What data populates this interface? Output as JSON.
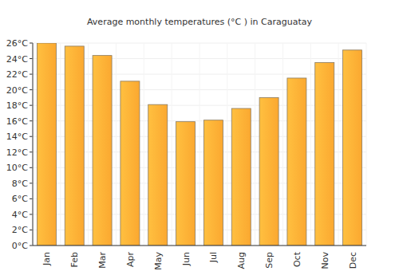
{
  "chart_data": {
    "type": "bar",
    "title": "Average monthly temperatures (°C ) in Caraguatay",
    "categories": [
      "Jan",
      "Feb",
      "Mar",
      "Apr",
      "May",
      "Jun",
      "Jul",
      "Aug",
      "Sep",
      "Oct",
      "Nov",
      "Dec"
    ],
    "values": [
      26.0,
      25.6,
      24.4,
      21.1,
      18.1,
      15.9,
      16.1,
      17.6,
      19.0,
      21.5,
      23.5,
      25.1
    ],
    "color": "#fba830",
    "ylim": [
      0,
      26
    ],
    "yticks": [
      {
        "value": 0,
        "label": "0°C"
      },
      {
        "value": 2,
        "label": "2°C"
      },
      {
        "value": 4,
        "label": "4°C"
      },
      {
        "value": 6,
        "label": "6°C"
      },
      {
        "value": 8,
        "label": "8°C"
      },
      {
        "value": 10,
        "label": "10°C"
      },
      {
        "value": 12,
        "label": "12°C"
      },
      {
        "value": 14,
        "label": "14°C"
      },
      {
        "value": 16,
        "label": "16°C"
      },
      {
        "value": 18,
        "label": "18°C"
      },
      {
        "value": 20,
        "label": "20°C"
      },
      {
        "value": 22,
        "label": "22°C"
      },
      {
        "value": 24,
        "label": "24°C"
      },
      {
        "value": 26,
        "label": "26°C"
      }
    ],
    "grid": true
  }
}
